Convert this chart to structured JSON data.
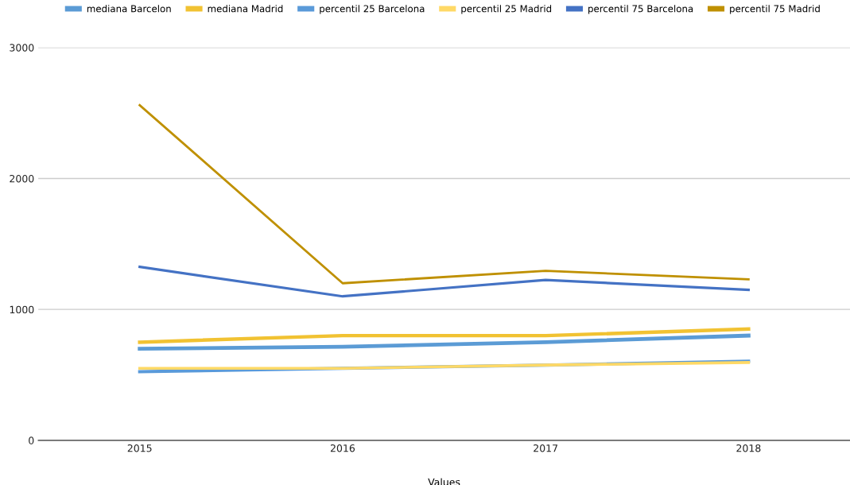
{
  "chart_data": {
    "type": "line",
    "xlabel": "Values",
    "categories": [
      "2015",
      "2016",
      "2017",
      "2018"
    ],
    "series": [
      {
        "name": "mediana Barcelon",
        "color": "#5b9bd5",
        "values": [
          700,
          715,
          750,
          800
        ]
      },
      {
        "name": "mediana Madrid",
        "color": "#f1c232",
        "values": [
          750,
          800,
          800,
          850
        ]
      },
      {
        "name": "percentil 25 Barcelona",
        "color": "#5a9ad9",
        "values": [
          525,
          550,
          575,
          605
        ]
      },
      {
        "name": "percentil 25 Madrid",
        "color": "#ffd966",
        "values": [
          550,
          550,
          575,
          595
        ]
      },
      {
        "name": "percentil 75 Barcelona",
        "color": "#4472c4",
        "values": [
          1325,
          1100,
          1225,
          1150
        ]
      },
      {
        "name": "percentil 75 Madrid",
        "color": "#bf9000",
        "values": [
          2560,
          1200,
          1295,
          1230
        ]
      }
    ],
    "ylim": [
      0,
      3000
    ],
    "yticks": [
      0,
      1000,
      2000,
      3000
    ],
    "grid": "y",
    "legend": "top",
    "marker": "none",
    "line_style": "solid"
  }
}
